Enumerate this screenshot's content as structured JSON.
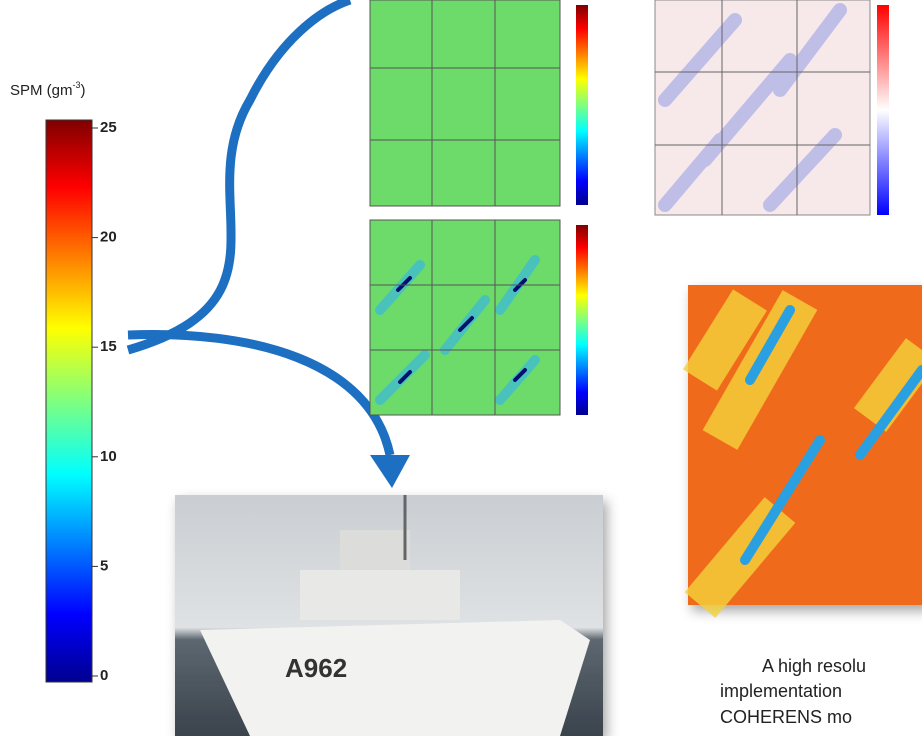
{
  "colorbar": {
    "title": "SPM (gm",
    "title_sup": "-3",
    "title_end": ")",
    "lim": [
      0,
      25
    ],
    "ticks": [
      0,
      5,
      10,
      15,
      20,
      25
    ]
  },
  "ship_label": "A962",
  "caption": [
    "A high resolu",
    "implementation",
    "COHERENS mo"
  ]
}
